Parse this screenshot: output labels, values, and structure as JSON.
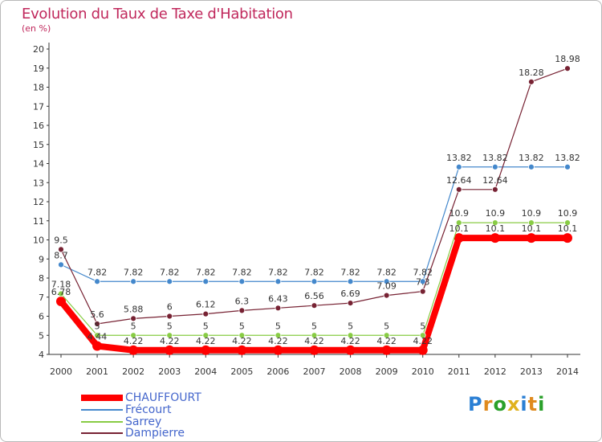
{
  "chart_data": {
    "type": "line",
    "title": "Evolution du Taux de Taxe d'Habitation",
    "subtitle": "(en %)",
    "categories": [
      "2000",
      "2001",
      "2002",
      "2003",
      "2004",
      "2005",
      "2006",
      "2007",
      "2008",
      "2009",
      "2010",
      "2011",
      "2012",
      "2013",
      "2014"
    ],
    "yticks": [
      "4",
      "5",
      "6",
      "7",
      "8",
      "9",
      "10",
      "11",
      "12",
      "13",
      "14",
      "15",
      "16",
      "17",
      "18",
      "19",
      "20"
    ],
    "ylim": [
      4,
      20
    ],
    "grid": false,
    "series": [
      {
        "name": "CHAUFFOURT",
        "color": "#ff0000",
        "values": [
          6.78,
          4.44,
          4.22,
          4.22,
          4.22,
          4.22,
          4.22,
          4.22,
          4.22,
          4.22,
          4.22,
          10.1,
          10.1,
          10.1,
          10.1
        ]
      },
      {
        "name": "Frécourt",
        "color": "#4488cc",
        "values": [
          8.7,
          7.82,
          7.82,
          7.82,
          7.82,
          7.82,
          7.82,
          7.82,
          7.82,
          7.82,
          7.82,
          13.82,
          13.82,
          13.82,
          13.82
        ]
      },
      {
        "name": "Sarrey",
        "color": "#88cc44",
        "values": [
          7.18,
          5,
          5,
          5,
          5,
          5,
          5,
          5,
          5,
          5,
          5,
          10.9,
          10.9,
          10.9,
          10.9
        ]
      },
      {
        "name": "Dampierre",
        "color": "#772233",
        "values": [
          9.5,
          5.6,
          5.88,
          6,
          6.12,
          6.3,
          6.43,
          6.56,
          6.69,
          7.09,
          7.3,
          12.64,
          12.64,
          18.28,
          18.98
        ]
      }
    ],
    "labels": {
      "CHAUFFOURT": [
        "6.78",
        "4.44",
        "4.22",
        "4.22",
        "4.22",
        "4.22",
        "4.22",
        "4.22",
        "4.22",
        "4.22",
        "4.22",
        "10.1",
        "10.1",
        "10.1",
        "10.1"
      ],
      "Frécourt": [
        "8.7",
        "7.82",
        "7.82",
        "7.82",
        "7.82",
        "7.82",
        "7.82",
        "7.82",
        "7.82",
        "7.82",
        "7.82",
        "13.82",
        "13.82",
        "13.82",
        "13.82"
      ],
      "Sarrey": [
        "7.18",
        "5",
        "5",
        "5",
        "5",
        "5",
        "5",
        "5",
        "5",
        "5",
        "5",
        "10.9",
        "10.9",
        "10.9",
        "10.9"
      ],
      "Dampierre": [
        "9.5",
        "5.6",
        "5.88",
        "6",
        "6.12",
        "6.3",
        "6.43",
        "6.56",
        "6.69",
        "7.09",
        "7.3",
        "12.64",
        "12.64",
        "18.28",
        "18.98"
      ]
    }
  },
  "legend": [
    {
      "label": "CHAUFFOURT",
      "color": "#ff0000"
    },
    {
      "label": "Frécourt",
      "color": "#4488cc"
    },
    {
      "label": "Sarrey",
      "color": "#88cc44"
    },
    {
      "label": "Dampierre",
      "color": "#772233"
    }
  ],
  "logo": {
    "letters": [
      "P",
      "r",
      "o",
      "x",
      "i",
      "t",
      "i"
    ],
    "colors": [
      "#2a7fd4",
      "#e08a1e",
      "#2aa02a",
      "#e0b21e",
      "#2a7fd4",
      "#e08a1e",
      "#2aa02a"
    ]
  }
}
